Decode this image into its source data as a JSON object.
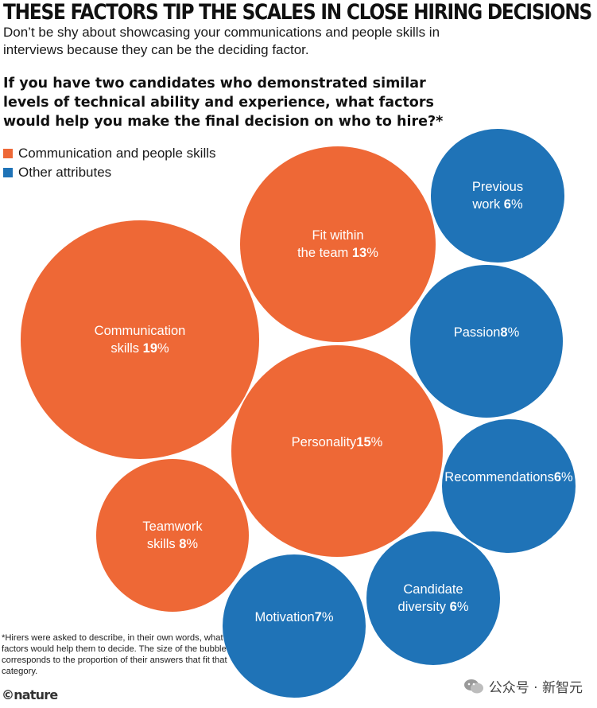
{
  "header": {
    "headline": "THESE FACTORS TIP THE SCALES IN CLOSE HIRING DECISIONS",
    "standfirst": "Don’t be shy about showcasing your communications and people skills in interviews because they can be the deciding factor.",
    "question": "If you have two candidates who demonstrated similar levels of technical ability and experience, what factors would help you make the final decision on who to hire?*"
  },
  "legend": [
    {
      "label": "Communication and people skills",
      "color": "#ee6836"
    },
    {
      "label": "Other attributes",
      "color": "#1f73b7"
    }
  ],
  "chart_data": {
    "type": "bubble",
    "unit": "%",
    "groups": [
      {
        "name": "Communication and people skills",
        "color": "#ee6836"
      },
      {
        "name": "Other attributes",
        "color": "#1f73b7"
      }
    ],
    "bubbles": [
      {
        "label": "Communication skills",
        "lines": [
          "Communication",
          "skills"
        ],
        "value": 19,
        "group": "Communication and people skills"
      },
      {
        "label": "Personality",
        "lines": [
          "Personality",
          ""
        ],
        "value": 15,
        "group": "Communication and people skills"
      },
      {
        "label": "Fit within the team",
        "lines": [
          "Fit within",
          "the team"
        ],
        "value": 13,
        "group": "Communication and people skills"
      },
      {
        "label": "Teamwork skills",
        "lines": [
          "Teamwork",
          "skills"
        ],
        "value": 8,
        "group": "Communication and people skills"
      },
      {
        "label": "Passion",
        "lines": [
          "Passion",
          ""
        ],
        "value": 8,
        "group": "Other attributes"
      },
      {
        "label": "Motivation",
        "lines": [
          "Motivation",
          ""
        ],
        "value": 7,
        "group": "Other attributes"
      },
      {
        "label": "Previous work",
        "lines": [
          "Previous",
          "work"
        ],
        "value": 6,
        "group": "Other attributes"
      },
      {
        "label": "Recommendations",
        "lines": [
          "Recommendations",
          ""
        ],
        "value": 6,
        "group": "Other attributes"
      },
      {
        "label": "Candidate diversity",
        "lines": [
          "Candidate",
          "diversity"
        ],
        "value": 6,
        "group": "Other attributes"
      }
    ]
  },
  "footnote": "*Hirers were asked to describe, in their own words, what factors would help them to decide. The size of the bubble corresponds to the proportion of their answers that fit that category.",
  "credit": "©nature",
  "watermark": "公众号 · 新智元"
}
